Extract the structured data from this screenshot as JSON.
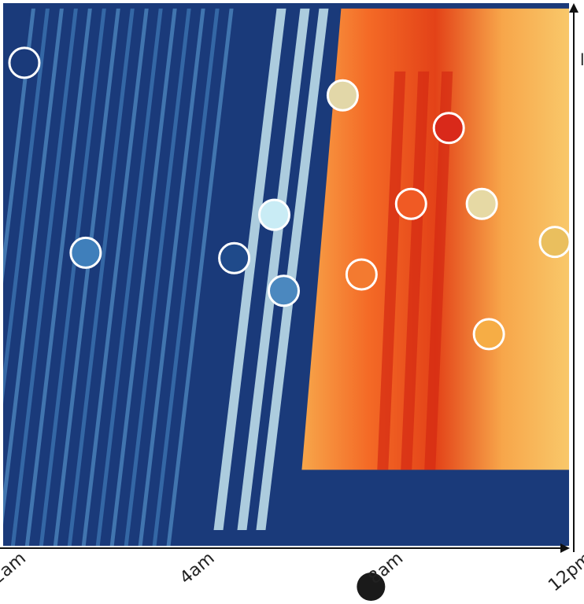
{
  "chart_data": {
    "type": "heatmap",
    "title": "",
    "xlabel": "",
    "ylabel": "",
    "x_axis": {
      "unit": "hour of day",
      "xlim": [
        0,
        12
      ],
      "ticks": [
        {
          "value": 0,
          "label": "12am"
        },
        {
          "value": 4,
          "label": "4am"
        },
        {
          "value": 8,
          "label": "8am"
        },
        {
          "value": 12,
          "label": "12pm"
        }
      ]
    },
    "y_axis": {
      "ylim": [
        0,
        1
      ],
      "ticks": [],
      "partial_label": "l"
    },
    "color_scale": {
      "low": "#1a3a7a",
      "mid_low": "#4a8cc4",
      "mid": "#c7e6f0",
      "mid_high": "#f6c35a",
      "high": "#d42a12"
    },
    "heatmap": {
      "description_free": true,
      "active_y_range": [
        0.14,
        0.99
      ],
      "warm_region_start_hour": 7.0,
      "cool_stripe_hours": [
        0.6,
        0.9,
        1.2,
        1.5,
        1.8,
        2.1,
        2.4,
        2.7,
        3.0,
        3.3,
        3.6,
        3.9,
        4.2,
        4.5,
        4.8
      ],
      "light_band_hours": [
        5.8,
        6.3,
        6.7
      ],
      "red_band_hours": [
        8.3,
        8.8,
        9.3
      ]
    },
    "points": [
      {
        "x": 0.45,
        "y": 0.89,
        "color": "#1a3a7a"
      },
      {
        "x": 1.75,
        "y": 0.54,
        "color": "#3f7fbb"
      },
      {
        "x": 4.9,
        "y": 0.53,
        "color": "#1f4a8a"
      },
      {
        "x": 5.75,
        "y": 0.61,
        "color": "#c9ecf5"
      },
      {
        "x": 5.95,
        "y": 0.47,
        "color": "#4b88bf"
      },
      {
        "x": 7.2,
        "y": 0.83,
        "color": "#e2d7a8"
      },
      {
        "x": 7.6,
        "y": 0.5,
        "color": "#f37a30"
      },
      {
        "x": 8.65,
        "y": 0.63,
        "color": "#f05a24"
      },
      {
        "x": 9.45,
        "y": 0.77,
        "color": "#d9291a"
      },
      {
        "x": 10.15,
        "y": 0.63,
        "color": "#e6d9a4"
      },
      {
        "x": 10.3,
        "y": 0.39,
        "color": "#f6ad45"
      },
      {
        "x": 11.7,
        "y": 0.56,
        "color": "#eabf5e"
      }
    ],
    "marker_on_axis": {
      "x": 7.8,
      "color": "#1a1a1a"
    },
    "grid": false,
    "legend": "none"
  }
}
